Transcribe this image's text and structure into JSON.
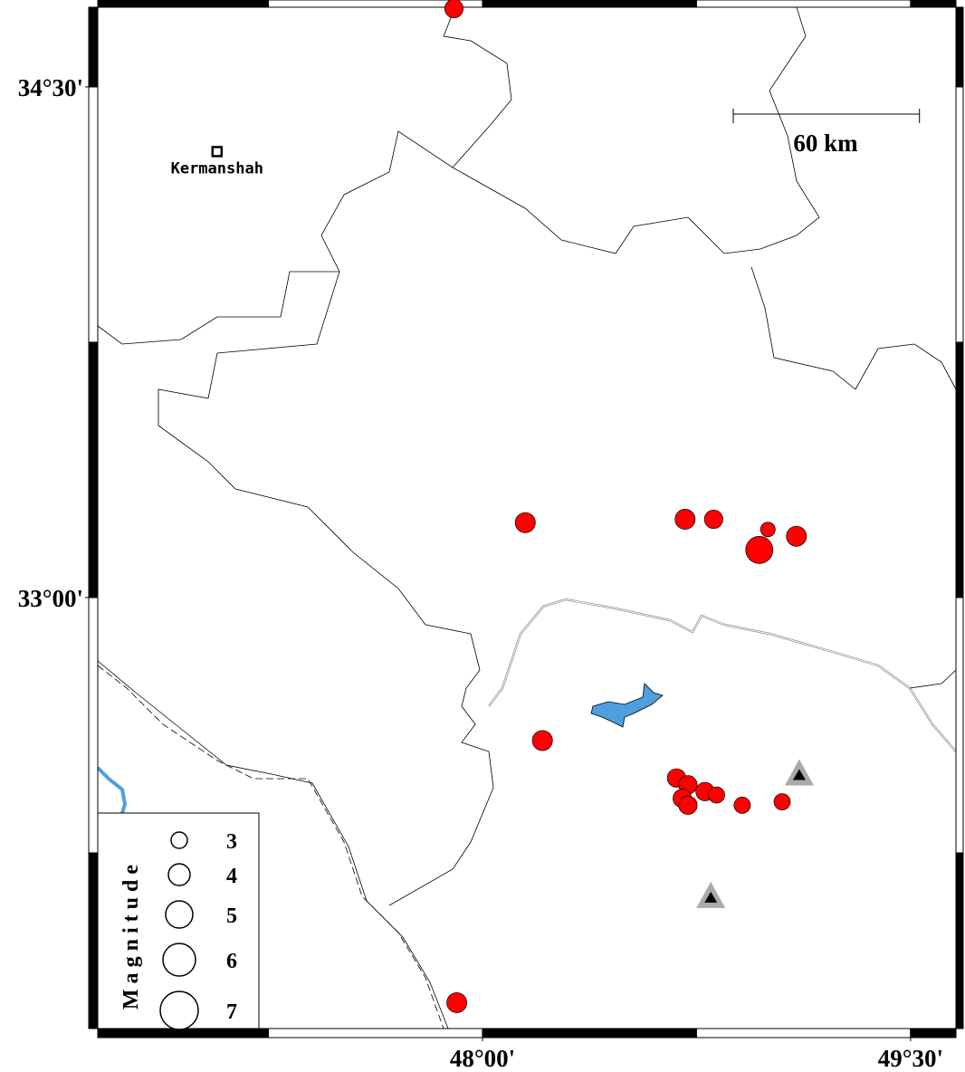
{
  "map": {
    "xlim": [
      46.652,
      49.659
    ],
    "ylim": [
      31.734,
      34.734
    ],
    "xticks": [
      {
        "value": 48,
        "label": "48°00'"
      },
      {
        "value": 49.5,
        "label": "49°30'"
      }
    ],
    "yticks": [
      {
        "value": 33,
        "label": "33°00'"
      },
      {
        "value": 34.5,
        "label": "34°30'"
      }
    ],
    "city": {
      "name": "Kermanshah",
      "lon": 47.07,
      "lat": 34.31
    },
    "scale_bar": {
      "label": "60 km",
      "length_km": 60
    },
    "events": {
      "color": "#ff0000",
      "lon": [
        47.9,
        48.15,
        48.71,
        48.81,
        49.0,
        48.97,
        49.1,
        48.21,
        48.68,
        48.72,
        48.78,
        48.82,
        48.7,
        48.72,
        48.91,
        49.05,
        47.91
      ],
      "lat": [
        34.73,
        33.22,
        33.23,
        33.23,
        33.2,
        33.14,
        33.18,
        32.58,
        32.47,
        32.45,
        32.43,
        32.42,
        32.41,
        32.39,
        32.39,
        32.4,
        31.81
      ],
      "magnitude": [
        3.4,
        3.7,
        3.7,
        3.4,
        2.7,
        5,
        3.7,
        3.7,
        3.4,
        3.4,
        3.4,
        3,
        3.4,
        3.4,
        3,
        3,
        3.7
      ]
    },
    "stations": {
      "lon": [
        49.11,
        48.8
      ],
      "lat": [
        32.48,
        32.12
      ]
    },
    "legend": {
      "title": "Magnitude",
      "values": [
        3,
        4,
        5,
        6,
        7
      ]
    }
  }
}
